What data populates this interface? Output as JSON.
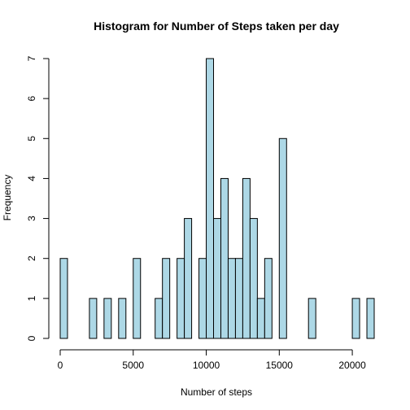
{
  "chart_data": {
    "type": "bar",
    "title": "Histogram for Number of Steps taken per day",
    "xlabel": "Number of steps",
    "ylabel": "Frequency",
    "bin_width": 500,
    "xlim": [
      0,
      21500
    ],
    "ylim": [
      0,
      7
    ],
    "x_ticks": [
      0,
      5000,
      10000,
      15000,
      20000
    ],
    "y_ticks": [
      0,
      1,
      2,
      3,
      4,
      5,
      6,
      7
    ],
    "bar_color": "#add8e6",
    "bins": [
      {
        "start": 0,
        "end": 500,
        "count": 2
      },
      {
        "start": 2000,
        "end": 2500,
        "count": 1
      },
      {
        "start": 3000,
        "end": 3500,
        "count": 1
      },
      {
        "start": 4000,
        "end": 4500,
        "count": 1
      },
      {
        "start": 5000,
        "end": 5500,
        "count": 2
      },
      {
        "start": 6500,
        "end": 7000,
        "count": 1
      },
      {
        "start": 7000,
        "end": 7500,
        "count": 2
      },
      {
        "start": 8000,
        "end": 8500,
        "count": 2
      },
      {
        "start": 8500,
        "end": 9000,
        "count": 3
      },
      {
        "start": 9500,
        "end": 10000,
        "count": 2
      },
      {
        "start": 10000,
        "end": 10500,
        "count": 7
      },
      {
        "start": 10500,
        "end": 11000,
        "count": 3
      },
      {
        "start": 11000,
        "end": 11500,
        "count": 4
      },
      {
        "start": 11500,
        "end": 12000,
        "count": 2
      },
      {
        "start": 12000,
        "end": 12500,
        "count": 2
      },
      {
        "start": 12500,
        "end": 13000,
        "count": 4
      },
      {
        "start": 13000,
        "end": 13500,
        "count": 3
      },
      {
        "start": 13500,
        "end": 14000,
        "count": 1
      },
      {
        "start": 14000,
        "end": 14500,
        "count": 2
      },
      {
        "start": 15000,
        "end": 15500,
        "count": 5
      },
      {
        "start": 17000,
        "end": 17500,
        "count": 1
      },
      {
        "start": 20000,
        "end": 20500,
        "count": 1
      },
      {
        "start": 21000,
        "end": 21500,
        "count": 1
      }
    ]
  }
}
